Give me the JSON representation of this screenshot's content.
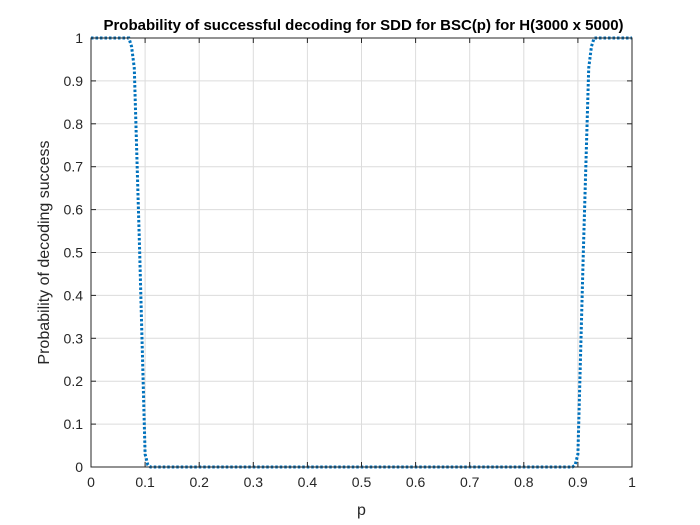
{
  "chart_data": {
    "type": "line",
    "title": "Probability of successful decoding for SDD for BSC(p) for H(3000 x 5000)",
    "xlabel": "p",
    "ylabel": "Probability of decoding success",
    "xlim": [
      0,
      1
    ],
    "ylim": [
      0,
      1
    ],
    "xticks": [
      "0",
      "0.1",
      "0.2",
      "0.3",
      "0.4",
      "0.5",
      "0.6",
      "0.7",
      "0.8",
      "0.9",
      "1"
    ],
    "yticks": [
      "0",
      "0.1",
      "0.2",
      "0.3",
      "0.4",
      "0.5",
      "0.6",
      "0.7",
      "0.8",
      "0.9",
      "1"
    ],
    "grid": true,
    "series": [
      {
        "color": "#0072BD",
        "line_style": "dotted",
        "x": [
          0,
          0.07,
          0.075,
          0.08,
          0.09,
          0.1,
          0.105,
          0.11,
          0.2,
          0.3,
          0.4,
          0.5,
          0.6,
          0.7,
          0.8,
          0.89,
          0.895,
          0.9,
          0.91,
          0.92,
          0.925,
          0.93,
          1
        ],
        "y": [
          1,
          1,
          0.98,
          0.93,
          0.5,
          0.03,
          0.005,
          0,
          0,
          0,
          0,
          0,
          0,
          0,
          0,
          0,
          0.005,
          0.03,
          0.5,
          0.93,
          0.98,
          1,
          1
        ]
      }
    ]
  }
}
